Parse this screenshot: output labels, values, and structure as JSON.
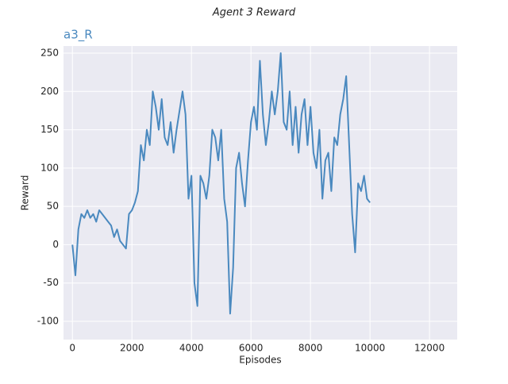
{
  "chart_data": {
    "type": "line",
    "title": "Agent 3 Reward",
    "subtitle": "a3_R",
    "xlabel": "Episodes",
    "ylabel": "Reward",
    "x": [
      0,
      100,
      200,
      300,
      400,
      500,
      600,
      700,
      800,
      900,
      1000,
      1100,
      1200,
      1300,
      1400,
      1500,
      1600,
      1700,
      1800,
      1900,
      2000,
      2100,
      2200,
      2300,
      2400,
      2500,
      2600,
      2700,
      2800,
      2900,
      3000,
      3100,
      3200,
      3300,
      3400,
      3500,
      3600,
      3700,
      3800,
      3900,
      4000,
      4100,
      4200,
      4300,
      4400,
      4500,
      4600,
      4700,
      4800,
      4900,
      5000,
      5100,
      5200,
      5300,
      5400,
      5500,
      5600,
      5700,
      5800,
      5900,
      6000,
      6100,
      6200,
      6300,
      6400,
      6500,
      6600,
      6700,
      6800,
      6900,
      7000,
      7100,
      7200,
      7300,
      7400,
      7500,
      7600,
      7700,
      7800,
      7900,
      8000,
      8100,
      8200,
      8300,
      8400,
      8500,
      8600,
      8700,
      8800,
      8900,
      9000,
      9100,
      9200,
      9300,
      9400,
      9500,
      9600,
      9700,
      9800,
      9900,
      10000
    ],
    "series": [
      {
        "name": "a3_R",
        "color": "#4a89bf",
        "values": [
          0,
          -40,
          20,
          40,
          35,
          45,
          35,
          40,
          30,
          45,
          40,
          35,
          30,
          25,
          10,
          20,
          5,
          0,
          -5,
          40,
          45,
          55,
          70,
          130,
          110,
          150,
          130,
          200,
          180,
          150,
          190,
          140,
          130,
          160,
          120,
          150,
          175,
          200,
          170,
          60,
          90,
          -50,
          -80,
          90,
          80,
          60,
          90,
          150,
          140,
          110,
          150,
          60,
          30,
          -90,
          -30,
          100,
          120,
          80,
          50,
          110,
          160,
          180,
          150,
          240,
          170,
          130,
          160,
          200,
          170,
          200,
          250,
          160,
          150,
          200,
          130,
          180,
          120,
          170,
          190,
          130,
          180,
          120,
          100,
          150,
          60,
          110,
          120,
          70,
          140,
          130,
          170,
          190,
          220,
          130,
          40,
          -10,
          80,
          70,
          90,
          60,
          55
        ]
      }
    ],
    "xlim": [
      -300,
      12930
    ],
    "ylim": [
      -123.8,
      259.3
    ],
    "xticks": [
      0,
      2000,
      4000,
      6000,
      8000,
      10000,
      12000
    ],
    "yticks": [
      -100,
      -50,
      0,
      50,
      100,
      150,
      200,
      250
    ],
    "grid": true
  }
}
